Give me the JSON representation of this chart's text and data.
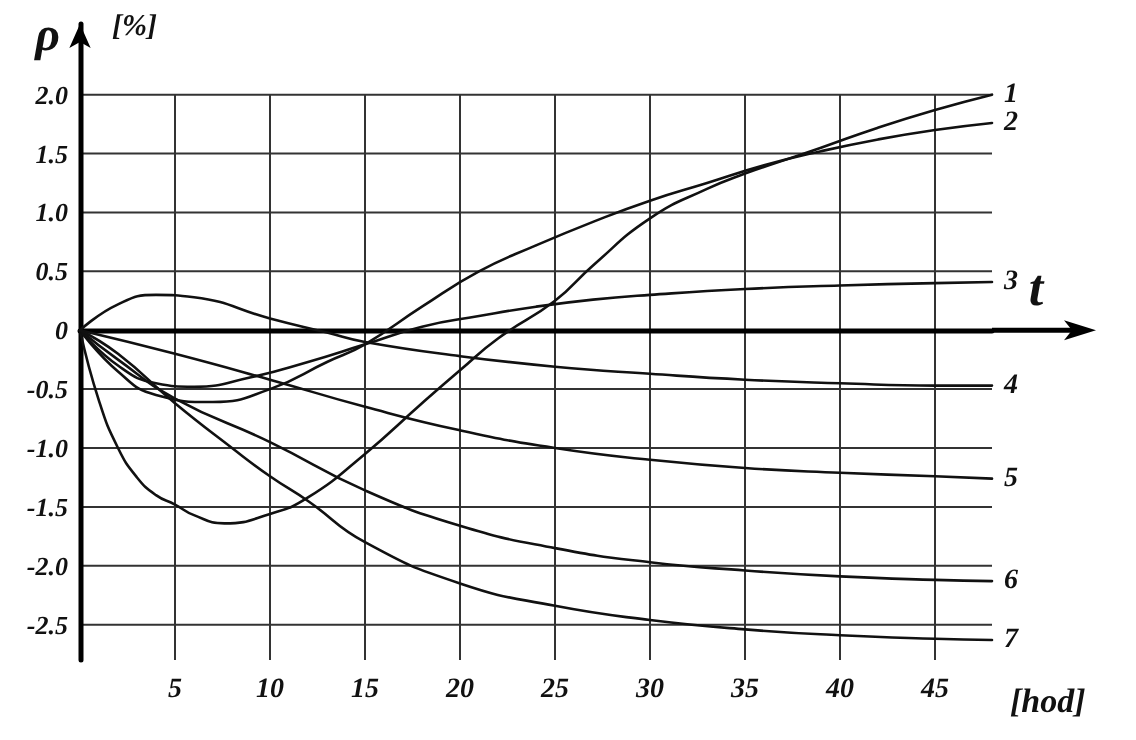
{
  "chart_data": {
    "type": "line",
    "xlabel": "t",
    "ylabel": "ρ",
    "annotations": [
      "[hod]",
      "[%]"
    ],
    "xlim": [
      0,
      48
    ],
    "xticks": [
      5,
      10,
      15,
      20,
      25,
      30,
      35,
      40,
      45
    ],
    "ylim": [
      -2.8,
      2.6
    ],
    "yticks": [
      {
        "value": 2,
        "label": "2.0"
      },
      1.5,
      {
        "value": 1,
        "label": "1.0"
      },
      0.5,
      0,
      -0.5,
      {
        "value": -1,
        "label": "-1.0"
      },
      -1.5,
      {
        "value": -2,
        "label": "-2.0"
      },
      -2.5
    ],
    "grid": true,
    "legend": false,
    "marker": "none",
    "line_style": "solid",
    "series": [
      {
        "name": "1",
        "color": "#111111",
        "x": [
          0,
          1,
          2,
          3,
          4,
          5,
          6,
          7.6,
          10,
          12,
          15,
          18,
          20,
          22,
          25,
          27,
          30,
          33,
          35,
          37,
          39,
          42,
          45,
          48
        ],
        "values": [
          0,
          -0.6,
          -1.0,
          -1.25,
          -1.4,
          -1.48,
          -1.57,
          -1.64,
          -1.56,
          -1.42,
          -1.05,
          -0.62,
          -0.34,
          -0.07,
          0.25,
          0.55,
          0.95,
          1.2,
          1.33,
          1.44,
          1.55,
          1.72,
          1.87,
          2.0
        ]
      },
      {
        "name": "2",
        "color": "#111111",
        "x": [
          0,
          2,
          4,
          7,
          10,
          13,
          15,
          18,
          21,
          24,
          27,
          30,
          33,
          36,
          39,
          42,
          45,
          48
        ],
        "values": [
          0,
          -0.35,
          -0.55,
          -0.61,
          -0.5,
          -0.27,
          -0.12,
          0.2,
          0.5,
          0.72,
          0.92,
          1.1,
          1.25,
          1.4,
          1.52,
          1.62,
          1.7,
          1.76
        ]
      },
      {
        "name": "3",
        "color": "#111111",
        "x": [
          0,
          2,
          4,
          6,
          9,
          12,
          15,
          18,
          21,
          24,
          27,
          30,
          35,
          40,
          45,
          48
        ],
        "values": [
          0,
          -0.3,
          -0.45,
          -0.48,
          -0.4,
          -0.27,
          -0.12,
          0.03,
          0.12,
          0.2,
          0.26,
          0.3,
          0.35,
          0.38,
          0.4,
          0.41
        ]
      },
      {
        "name": "4",
        "color": "#111111",
        "x": [
          0,
          2,
          4,
          6,
          10,
          13,
          15,
          20,
          25,
          30,
          35,
          40,
          45,
          48
        ],
        "values": [
          0,
          0.22,
          0.3,
          0.28,
          0.1,
          -0.02,
          -0.1,
          -0.22,
          -0.31,
          -0.37,
          -0.42,
          -0.45,
          -0.47,
          -0.47
        ]
      },
      {
        "name": "5",
        "color": "#111111",
        "x": [
          0,
          5,
          10,
          15,
          20,
          25,
          30,
          35,
          40,
          45,
          48
        ],
        "values": [
          0,
          -0.2,
          -0.42,
          -0.65,
          -0.85,
          -1.0,
          -1.1,
          -1.17,
          -1.21,
          -1.24,
          -1.26
        ]
      },
      {
        "name": "6",
        "color": "#111111",
        "x": [
          0,
          2,
          5,
          10,
          15,
          20,
          25,
          30,
          35,
          40,
          45,
          48
        ],
        "values": [
          0,
          -0.25,
          -0.58,
          -0.95,
          -1.36,
          -1.66,
          -1.85,
          -1.97,
          -2.04,
          -2.09,
          -2.12,
          -2.13
        ]
      },
      {
        "name": "7",
        "color": "#111111",
        "x": [
          0,
          2,
          5,
          8,
          10,
          12,
          15,
          20,
          25,
          30,
          35,
          40,
          45,
          48
        ],
        "values": [
          0,
          -0.2,
          -0.62,
          -1.0,
          -1.24,
          -1.45,
          -1.8,
          -2.15,
          -2.34,
          -2.46,
          -2.54,
          -2.59,
          -2.62,
          -2.63
        ]
      }
    ]
  }
}
